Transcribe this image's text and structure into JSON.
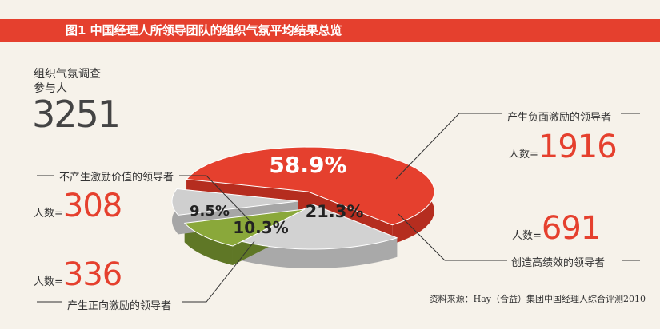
{
  "figure_title": "图1 中国经理人所领导团队的组织气氛平均结果总览",
  "survey": {
    "label_line1": "组织气氛调查",
    "label_line2": "参与人",
    "count": "3251"
  },
  "groups": [
    {
      "label": "产生负面激励的领导者",
      "count_prefix": "人数=",
      "count": "1916",
      "percent_label": "58.9%"
    },
    {
      "label": "创造高绩效的领导者",
      "count_prefix": "人数=",
      "count": "691",
      "percent_label": "21.3%"
    },
    {
      "label": "产生正向激励的领导者",
      "count_prefix": "人数=",
      "count": "336",
      "percent_label": "10.3%"
    },
    {
      "label": "不产生激励价值的领导者",
      "count_prefix": "人数=",
      "count": "308",
      "percent_label": "9.5%"
    }
  ],
  "source": "资料来源：Hay（合益）集团中国经理人综合评测2010",
  "colors": {
    "banner": "#e5402e",
    "negative": "#e5402e",
    "high_performance": "#d2d2d2",
    "positive": "#8aa83a",
    "no_value": "#cfcfcf",
    "count_text": "#e5402e"
  },
  "chart_data": {
    "type": "pie",
    "style": "3d-exploded",
    "title": "中国经理人所领导团队的组织气氛平均结果总览",
    "total": 3251,
    "slices": [
      {
        "label": "产生负面激励的领导者",
        "value": 1916,
        "percent": 58.9
      },
      {
        "label": "创造高绩效的领导者",
        "value": 691,
        "percent": 21.3
      },
      {
        "label": "产生正向激励的领导者",
        "value": 336,
        "percent": 10.3
      },
      {
        "label": "不产生激励价值的领导者",
        "value": 308,
        "percent": 9.5
      }
    ]
  }
}
